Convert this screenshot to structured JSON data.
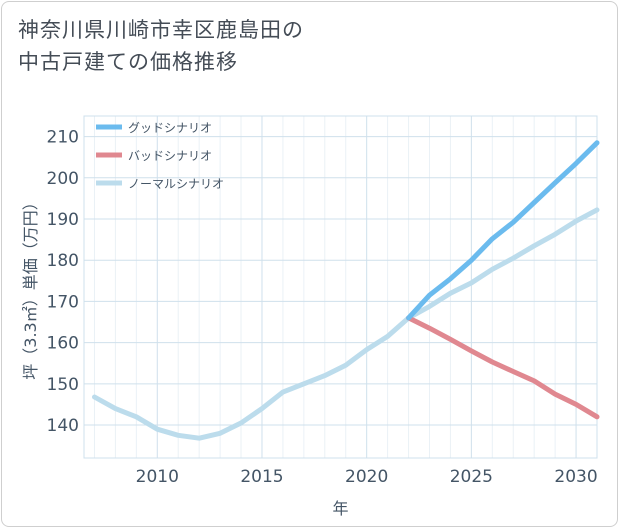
{
  "title_line1": "神奈川県川崎市幸区鹿島田の",
  "title_line2": "中古戸建ての価格推移",
  "chart_data": {
    "type": "line",
    "xlabel": "年",
    "ylabel": "坪（3.3㎡）単価（万円）",
    "xlim": [
      2006.5,
      2031
    ],
    "ylim": [
      132,
      215
    ],
    "xticks": [
      2010,
      2015,
      2020,
      2025,
      2030
    ],
    "yticks": [
      140,
      150,
      160,
      170,
      180,
      190,
      200,
      210
    ],
    "grid": true,
    "legend_position": "top-left",
    "series": [
      {
        "name": "グッドシナリオ",
        "color": "#6bbbee",
        "x": [
          2022,
          2023,
          2024,
          2025,
          2026,
          2027,
          2028,
          2029,
          2030,
          2031
        ],
        "y": [
          166,
          171.5,
          175.5,
          180,
          185.2,
          189.2,
          194,
          198.8,
          203.5,
          208.5
        ]
      },
      {
        "name": "バッドシナリオ",
        "color": "#e08890",
        "x": [
          2022,
          2023,
          2024,
          2025,
          2026,
          2027,
          2028,
          2029,
          2030,
          2031
        ],
        "y": [
          166,
          163.5,
          160.8,
          158,
          155.3,
          153,
          150.7,
          147.5,
          145,
          142
        ]
      },
      {
        "name": "ノーマルシナリオ",
        "color": "#bcdcec",
        "x": [
          2007,
          2008,
          2009,
          2010,
          2011,
          2012,
          2013,
          2014,
          2015,
          2016,
          2017,
          2018,
          2019,
          2020,
          2021,
          2022,
          2023,
          2024,
          2025,
          2026,
          2027,
          2028,
          2029,
          2030,
          2031
        ],
        "y": [
          146.8,
          144,
          142,
          139,
          137.5,
          136.8,
          138,
          140.5,
          144,
          148,
          150,
          152,
          154.5,
          158.3,
          161.5,
          166,
          168.8,
          172,
          174.5,
          177.8,
          180.5,
          183.5,
          186.3,
          189.5,
          192.2
        ]
      }
    ]
  }
}
